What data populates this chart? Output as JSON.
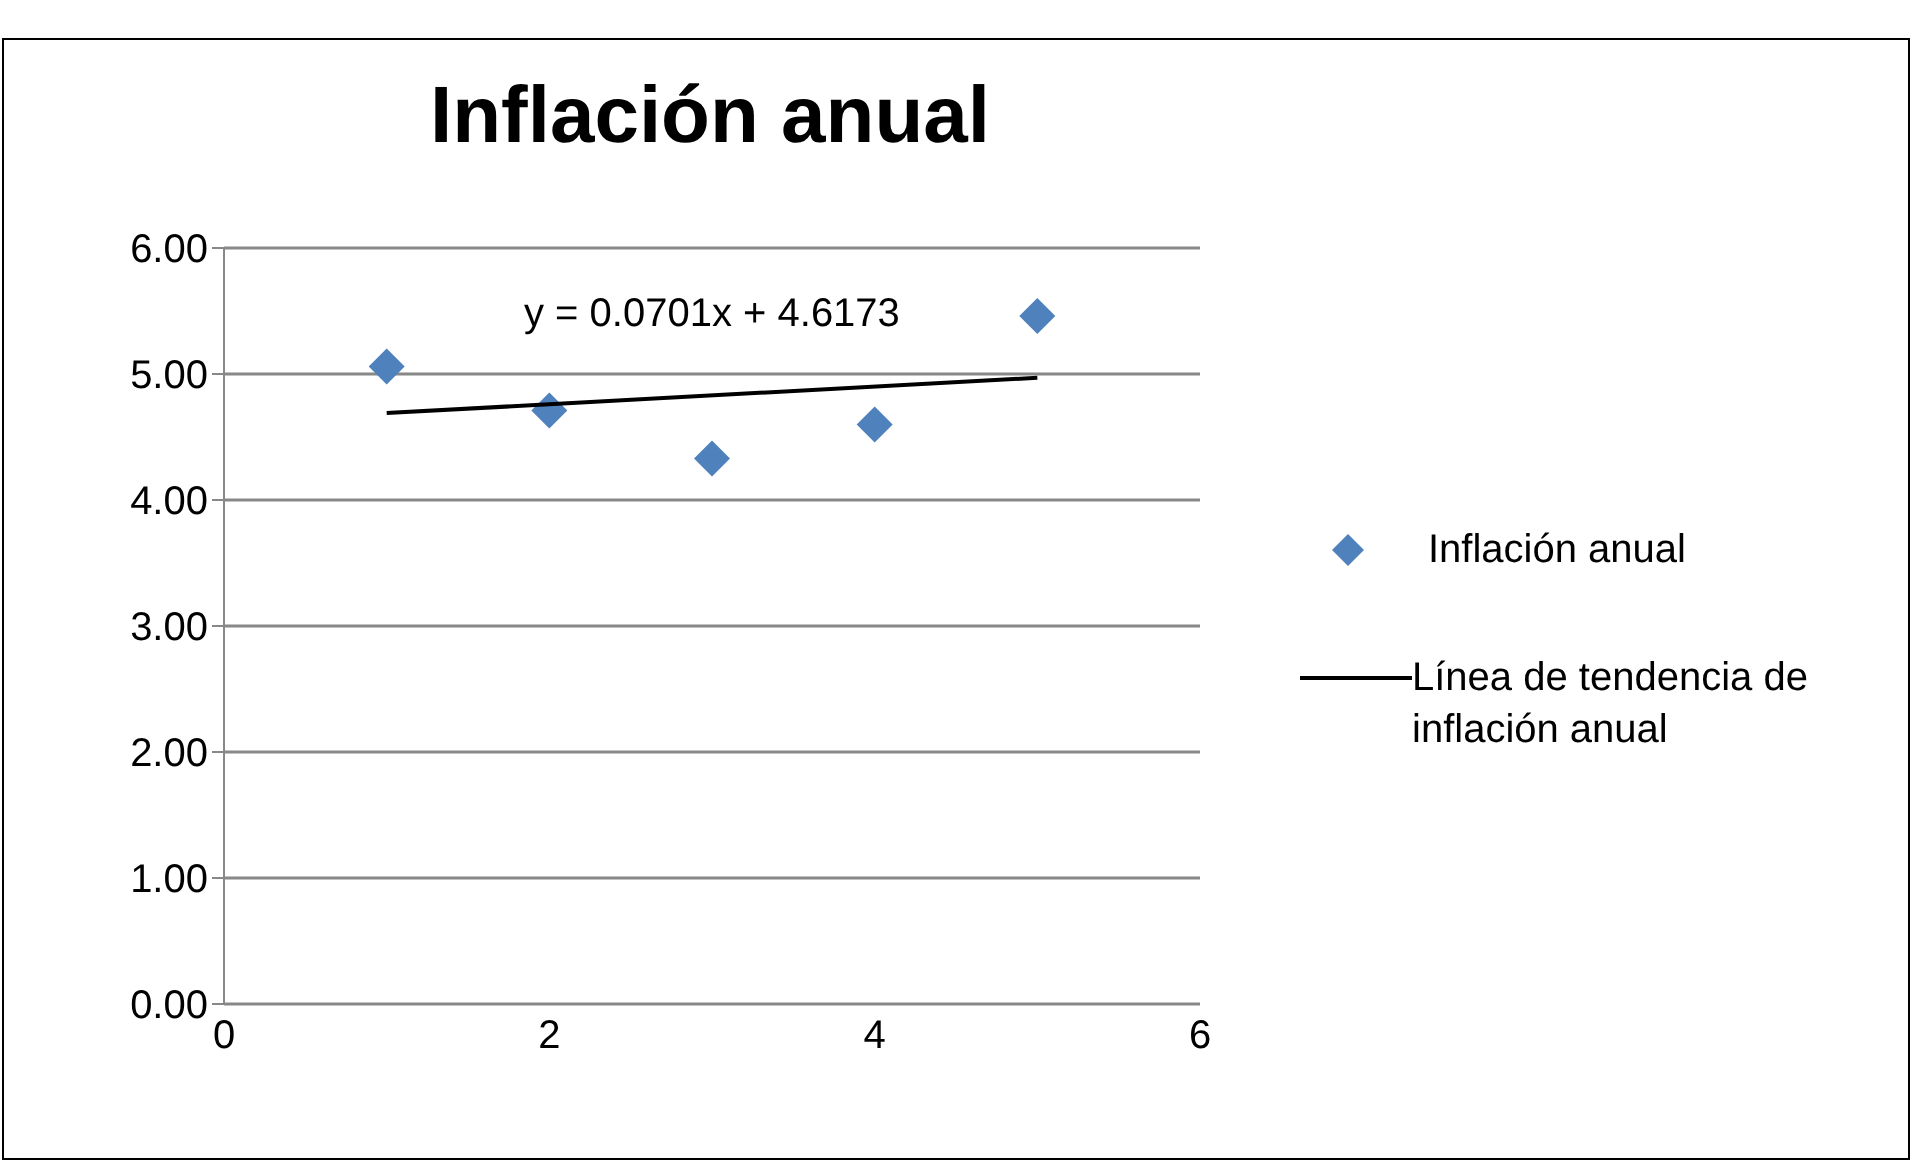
{
  "chart_data": {
    "type": "scatter",
    "title": "Inflación anual",
    "annotations": [
      "y = 0.0701x + 4.6173"
    ],
    "xlim": [
      0,
      6
    ],
    "xticks": [
      0,
      2,
      4,
      6
    ],
    "ylim": [
      0,
      6
    ],
    "yticks": [
      {
        "value": 0,
        "label": "0.00"
      },
      {
        "value": 1,
        "label": "1.00"
      },
      {
        "value": 2,
        "label": "2.00"
      },
      {
        "value": 3,
        "label": "3.00"
      },
      {
        "value": 4,
        "label": "4.00"
      },
      {
        "value": 5,
        "label": "5.00"
      },
      {
        "value": 6,
        "label": "6.00"
      }
    ],
    "grid": "y",
    "legend": "right",
    "series": [
      {
        "name": "Inflación anual",
        "marker": "diamond",
        "color": "#4f81bd",
        "x": [
          1,
          2,
          3,
          4,
          5
        ],
        "values": [
          5.06,
          4.71,
          4.33,
          4.6,
          5.46
        ]
      },
      {
        "name": "Línea de tendencia de inflación anual",
        "type": "line",
        "marker": "none",
        "color": "#000000",
        "x": [
          1,
          5
        ],
        "values": [
          4.69,
          4.97
        ]
      }
    ]
  }
}
